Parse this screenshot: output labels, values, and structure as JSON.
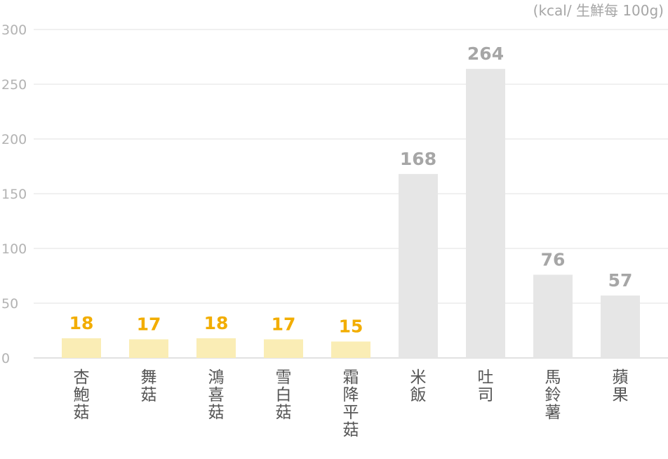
{
  "chart_data": {
    "type": "bar",
    "title": "",
    "unit_label": "(kcal/ 生鮮每 100g)",
    "ylim": [
      0,
      300
    ],
    "yticks": [
      0,
      50,
      100,
      150,
      200,
      250,
      300
    ],
    "grid": true,
    "categories": [
      "杏鮑菇",
      "舞菇",
      "鴻喜菇",
      "雪白菇",
      "霜降平菇",
      "米飯",
      "吐司",
      "馬鈴薯",
      "蘋果"
    ],
    "values": [
      18,
      17,
      18,
      17,
      15,
      168,
      264,
      76,
      57
    ],
    "groups": [
      "mushroom",
      "mushroom",
      "mushroom",
      "mushroom",
      "mushroom",
      "other",
      "other",
      "other",
      "other"
    ],
    "colors": {
      "mushroom_bar": "#faedb5",
      "mushroom_label": "#f2ad00",
      "other_bar": "#e6e6e6",
      "other_label": "#a6a6a6",
      "grid": "#ececec",
      "baseline": "#d9d9d9"
    }
  }
}
